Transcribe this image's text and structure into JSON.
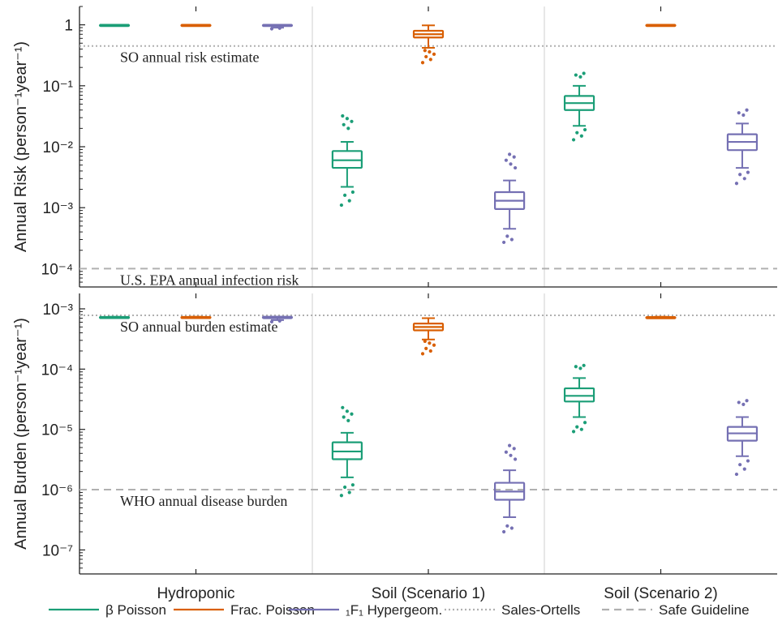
{
  "chart_data": {
    "type": "box",
    "categories": [
      "Hydroponic",
      "Soil (Scenario 1)",
      "Soil (Scenario 2)"
    ],
    "colors": {
      "beta_poisson": "#1b9e77",
      "frac_poisson": "#d95f02",
      "hypergeom": "#7570b3",
      "reference": "#b0b0b0",
      "axis": "#222222"
    },
    "legend": [
      {
        "key": "beta_poisson",
        "text": "β Poisson",
        "style": "solid"
      },
      {
        "key": "frac_poisson",
        "text": "Frac. Poisson",
        "style": "solid"
      },
      {
        "key": "hypergeom",
        "text": "₁F₁ Hypergeom.",
        "style": "solid"
      },
      {
        "key": "reference",
        "text": "Sales-Ortells",
        "style": "dotted"
      },
      {
        "key": "reference",
        "text": "Safe Guideline",
        "style": "dashed"
      }
    ],
    "panels": [
      {
        "ylabel": "Annual Risk (person⁻¹year⁻¹)",
        "yscale": "log",
        "ylim": [
          5e-05,
          2
        ],
        "yticks": [
          {
            "v": 1,
            "label": "1"
          },
          {
            "v": 0.1,
            "label": "10⁻¹"
          },
          {
            "v": 0.01,
            "label": "10⁻²"
          },
          {
            "v": 0.001,
            "label": "10⁻³"
          },
          {
            "v": 0.0001,
            "label": "10⁻⁴"
          }
        ],
        "reflines": [
          {
            "value": 0.45,
            "style": "dotted",
            "label": "SO annual risk estimate"
          },
          {
            "value": 0.0001,
            "style": "dashed",
            "label": "U.S. EPA annual infection risk"
          }
        ],
        "series": [
          {
            "key": "beta_poisson",
            "name": "β Poisson",
            "boxes": [
              {
                "q1": 0.999,
                "med": 1,
                "q3": 1,
                "wlo": 0.998,
                "whi": 1,
                "out": []
              },
              {
                "q1": 0.0045,
                "med": 0.006,
                "q3": 0.0085,
                "wlo": 0.0022,
                "whi": 0.012,
                "out": [
                  0.0011,
                  0.0013,
                  0.0016,
                  0.0018,
                  0.02,
                  0.023,
                  0.026,
                  0.029,
                  0.032
                ]
              },
              {
                "q1": 0.04,
                "med": 0.052,
                "q3": 0.068,
                "wlo": 0.022,
                "whi": 0.1,
                "out": [
                  0.013,
                  0.015,
                  0.017,
                  0.019,
                  0.14,
                  0.15,
                  0.16
                ]
              }
            ]
          },
          {
            "key": "frac_poisson",
            "name": "Frac. Poisson",
            "boxes": [
              {
                "q1": 0.999,
                "med": 1,
                "q3": 1,
                "wlo": 0.998,
                "whi": 1,
                "out": []
              },
              {
                "q1": 0.62,
                "med": 0.7,
                "q3": 0.8,
                "wlo": 0.42,
                "whi": 0.98,
                "out": [
                  0.24,
                  0.27,
                  0.3,
                  0.33,
                  0.36,
                  0.38
                ]
              },
              {
                "q1": 0.985,
                "med": 0.995,
                "q3": 1,
                "wlo": 0.97,
                "whi": 1,
                "out": []
              }
            ]
          },
          {
            "key": "hypergeom",
            "name": "₁F₁ Hypergeom.",
            "boxes": [
              {
                "q1": 0.97,
                "med": 0.99,
                "q3": 1,
                "wlo": 0.9,
                "whi": 1,
                "out": [
                  0.86,
                  0.88
                ]
              },
              {
                "q1": 0.00095,
                "med": 0.0013,
                "q3": 0.0018,
                "wlo": 0.00045,
                "whi": 0.0028,
                "out": [
                  0.00027,
                  0.0003,
                  0.00034,
                  0.0045,
                  0.0052,
                  0.006,
                  0.0068,
                  0.0075
                ]
              },
              {
                "q1": 0.0088,
                "med": 0.012,
                "q3": 0.016,
                "wlo": 0.0045,
                "whi": 0.024,
                "out": [
                  0.0025,
                  0.003,
                  0.0035,
                  0.0038,
                  0.033,
                  0.036,
                  0.04
                ]
              }
            ]
          }
        ]
      },
      {
        "ylabel": "Annual Burden (person⁻¹year⁻¹)",
        "yscale": "log",
        "ylim": [
          4e-08,
          0.0018
        ],
        "yticks": [
          {
            "v": 0.001,
            "label": "10⁻³"
          },
          {
            "v": 0.0001,
            "label": "10⁻⁴"
          },
          {
            "v": 1e-05,
            "label": "10⁻⁵"
          },
          {
            "v": 1e-06,
            "label": "10⁻⁶"
          },
          {
            "v": 1e-07,
            "label": "10⁻⁷"
          }
        ],
        "reflines": [
          {
            "value": 0.00078,
            "style": "dotted",
            "label": "SO annual burden estimate"
          },
          {
            "value": 1e-06,
            "style": "dashed",
            "label": "WHO annual disease burden"
          }
        ],
        "series": [
          {
            "key": "beta_poisson",
            "name": "β Poisson",
            "boxes": [
              {
                "q1": 0.000725,
                "med": 0.00073,
                "q3": 0.000735,
                "wlo": 0.00072,
                "whi": 0.00074,
                "out": []
              },
              {
                "q1": 3.2e-06,
                "med": 4.3e-06,
                "q3": 6.1e-06,
                "wlo": 1.6e-06,
                "whi": 8.8e-06,
                "out": [
                  8e-07,
                  9e-07,
                  1.1e-06,
                  1.2e-06,
                  1.4e-05,
                  1.6e-05,
                  1.8e-05,
                  2e-05,
                  2.3e-05
                ]
              },
              {
                "q1": 2.9e-05,
                "med": 3.6e-05,
                "q3": 4.8e-05,
                "wlo": 1.6e-05,
                "whi": 7.1e-05,
                "out": [
                  9.2e-06,
                  1e-05,
                  1.1e-05,
                  1.3e-05,
                  0.000103,
                  0.00011,
                  0.000115
                ]
              }
            ]
          },
          {
            "key": "frac_poisson",
            "name": "Frac. Poisson",
            "boxes": [
              {
                "q1": 0.000725,
                "med": 0.00073,
                "q3": 0.000735,
                "wlo": 0.00072,
                "whi": 0.00074,
                "out": []
              },
              {
                "q1": 0.00044,
                "med": 0.0005,
                "q3": 0.00057,
                "wlo": 0.00031,
                "whi": 0.0007,
                "out": [
                  0.00018,
                  0.0002,
                  0.00022,
                  0.00025,
                  0.00027,
                  0.00029
                ]
              },
              {
                "q1": 0.000715,
                "med": 0.000722,
                "q3": 0.00073,
                "wlo": 0.0007,
                "whi": 0.00074,
                "out": []
              }
            ]
          },
          {
            "key": "hypergeom",
            "name": "₁F₁ Hypergeom.",
            "boxes": [
              {
                "q1": 0.0007,
                "med": 0.00072,
                "q3": 0.00074,
                "wlo": 0.00065,
                "whi": 0.00074,
                "out": [
                  0.00061,
                  0.00063
                ]
              },
              {
                "q1": 6.8e-07,
                "med": 9.3e-07,
                "q3": 1.3e-06,
                "wlo": 3.5e-07,
                "whi": 2.1e-06,
                "out": [
                  2e-07,
                  2.3e-07,
                  2.5e-07,
                  3.2e-06,
                  3.7e-06,
                  4.2e-06,
                  4.8e-06,
                  5.4e-06
                ]
              },
              {
                "q1": 6.5e-06,
                "med": 8.6e-06,
                "q3": 1.1e-05,
                "wlo": 3.6e-06,
                "whi": 1.6e-05,
                "out": [
                  1.8e-06,
                  2.2e-06,
                  2.6e-06,
                  3e-06,
                  2.6e-05,
                  2.8e-05,
                  3e-05
                ]
              }
            ]
          }
        ]
      }
    ]
  }
}
